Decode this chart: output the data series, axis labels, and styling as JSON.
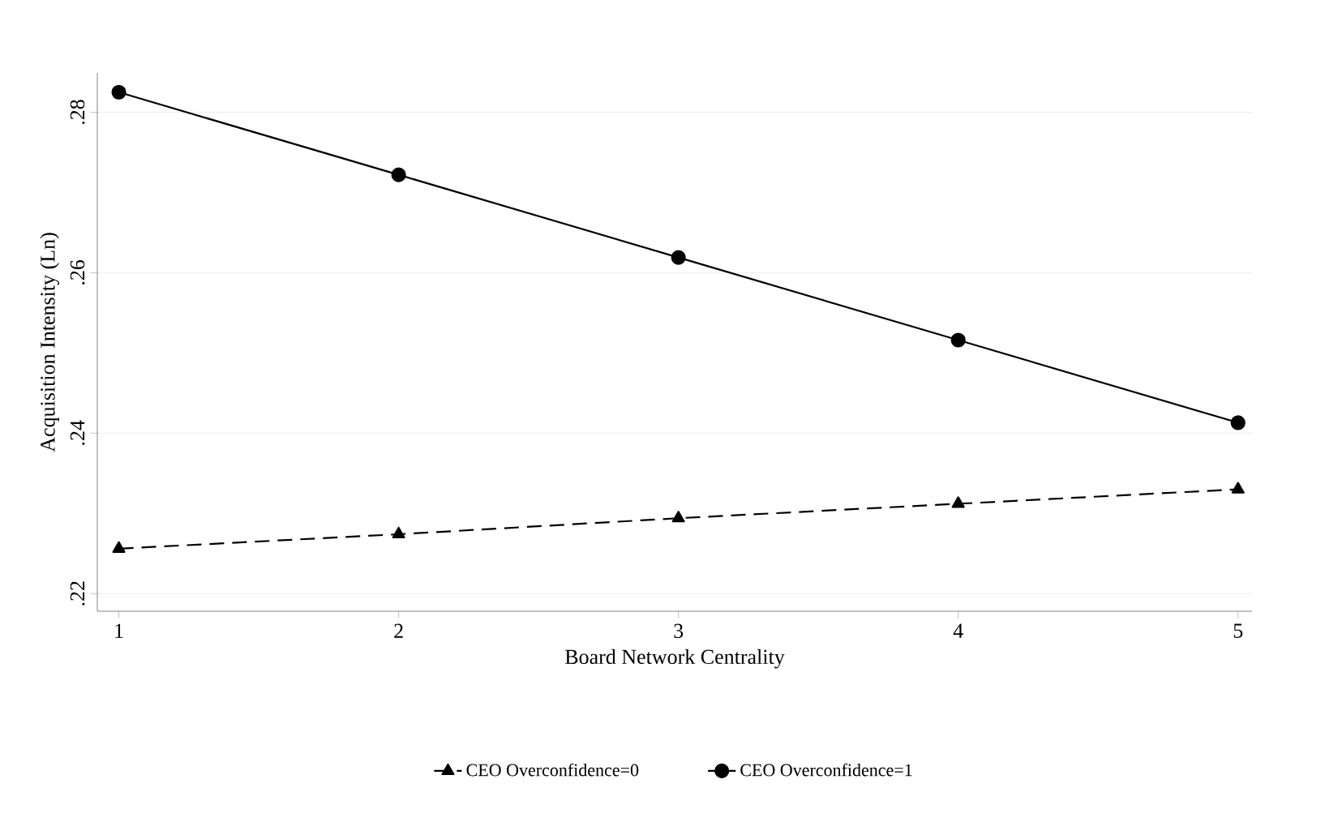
{
  "chart_data": {
    "type": "line",
    "xlabel": "Board Network Centrality",
    "ylabel": "Acquisition Intensity (Ln)",
    "x": [
      1,
      2,
      3,
      4,
      5
    ],
    "series": [
      {
        "name": "CEO Overconfidence=0",
        "color": "#000000",
        "values": [
          0.2256,
          0.2274,
          0.2294,
          0.2312,
          0.233
        ],
        "marker": "triangle",
        "line_style": "dashed"
      },
      {
        "name": "CEO Overconfidence=1",
        "color": "#000000",
        "values": [
          0.2825,
          0.2722,
          0.2619,
          0.2516,
          0.2413
        ],
        "marker": "circle",
        "line_style": "solid"
      }
    ],
    "xlim": [
      0.923,
      5.05
    ],
    "ylim": [
      0.2178,
      0.2849
    ],
    "xticks": [
      1,
      2,
      3,
      4,
      5
    ],
    "yticks": [
      {
        "value": 0.22,
        "label": ".22"
      },
      {
        "value": 0.24,
        "label": ".24"
      },
      {
        "value": 0.26,
        "label": ".26"
      },
      {
        "value": 0.28,
        "label": ".28"
      }
    ],
    "grid": "y",
    "legend": "bottom"
  }
}
